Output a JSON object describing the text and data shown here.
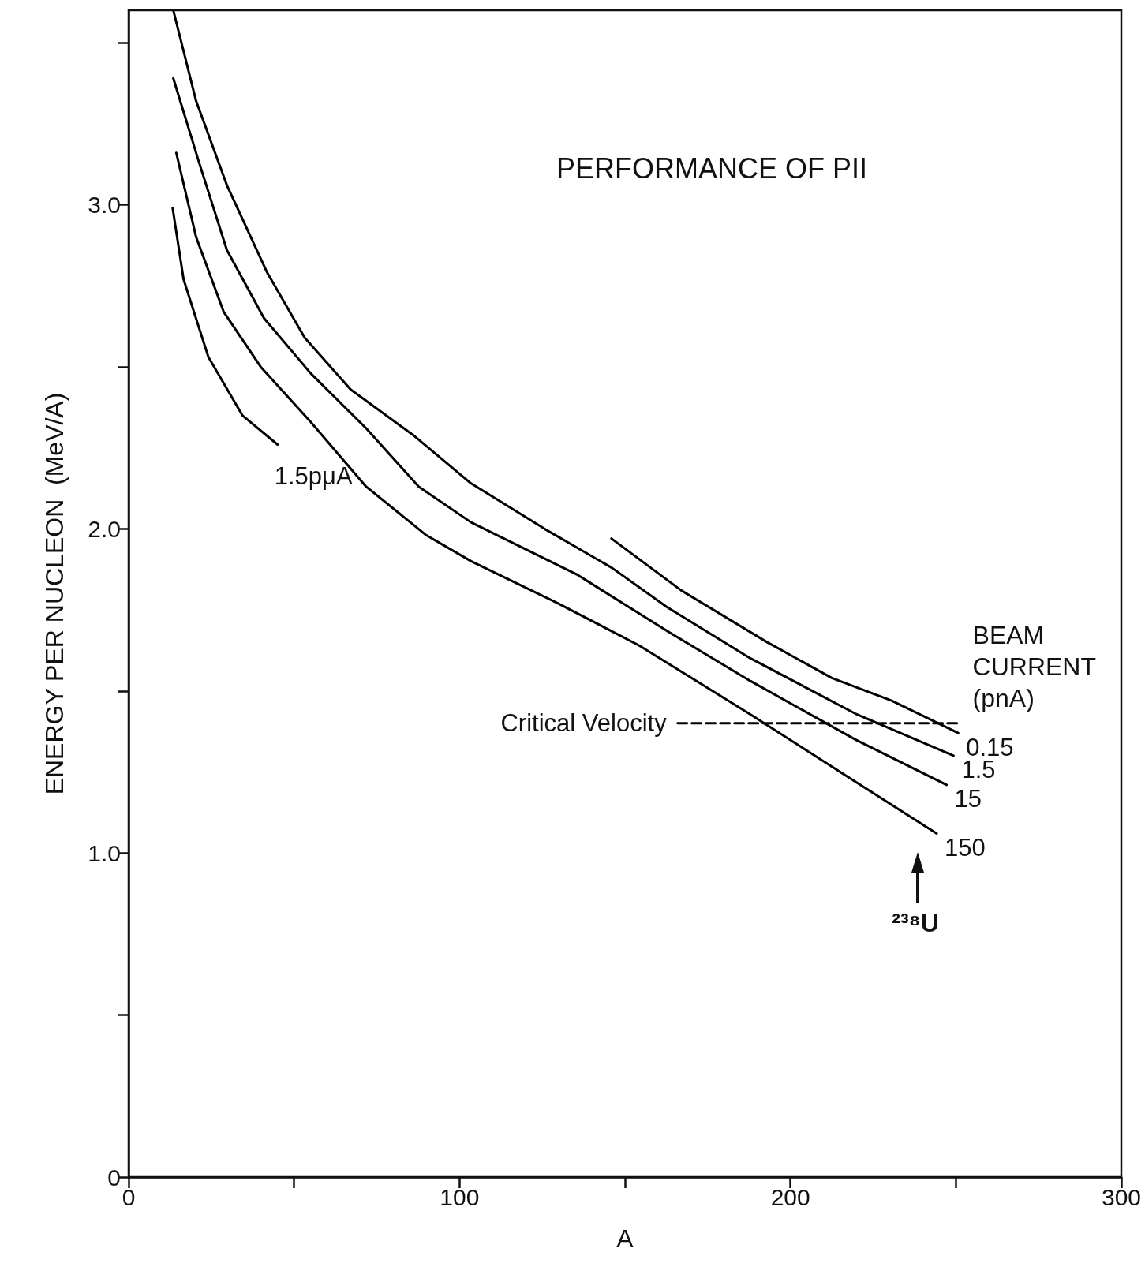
{
  "chart_data": {
    "type": "line",
    "title": "PERFORMANCE OF PII",
    "xlabel": "A",
    "ylabel": "ENERGY PER NUCLEON  (MeV/A)",
    "legend_title": "BEAM CURRENT (pnA)",
    "xlim": [
      0,
      300
    ],
    "xticks": [
      0,
      {
        "value": 50,
        "label": null
      },
      100,
      {
        "value": 150,
        "label": null
      },
      200,
      {
        "value": 250,
        "label": null
      },
      300
    ],
    "ylim": [
      0,
      3.6
    ],
    "yticks": [
      0,
      {
        "value": 0.5,
        "label": null
      },
      {
        "value": 1,
        "label": "1.0"
      },
      {
        "value": 1.5,
        "label": null
      },
      {
        "value": 2,
        "label": "2.0"
      },
      {
        "value": 2.5,
        "label": null
      },
      {
        "value": 3,
        "label": "3.0"
      },
      {
        "value": 3.5,
        "label": null
      }
    ],
    "grid": false,
    "legend": false,
    "marker": "none",
    "line_style": "solid",
    "series": [
      {
        "name": "0.15",
        "color": "#000000",
        "x": [
          145.9,
          167,
          193,
          212.5,
          230.6,
          250.7
        ],
        "values": [
          1.97,
          1.81,
          1.65,
          1.54,
          1.47,
          1.37
        ]
      },
      {
        "name": "1.5",
        "color": "#000000",
        "x": [
          13.5,
          20.4,
          29.7,
          41.9,
          53.2,
          67.1,
          85.9,
          103.5,
          125.7,
          146,
          162.5,
          188,
          219.6,
          249.3
        ],
        "values": [
          3.6,
          3.32,
          3.06,
          2.79,
          2.59,
          2.43,
          2.29,
          2.14,
          2.0,
          1.88,
          1.76,
          1.6,
          1.43,
          1.3
        ]
      },
      {
        "name": "15",
        "color": "#000000",
        "x": [
          13.5,
          21.3,
          29.7,
          40.9,
          55,
          71.8,
          87.7,
          103.5,
          135.3,
          163.5,
          188,
          219.6,
          247.2
        ],
        "values": [
          3.39,
          3.13,
          2.86,
          2.65,
          2.48,
          2.31,
          2.13,
          2.02,
          1.86,
          1.68,
          1.53,
          1.35,
          1.21
        ]
      },
      {
        "name": "150",
        "color": "#000000",
        "x": [
          14.4,
          20.4,
          28.7,
          39.9,
          55,
          71.8,
          90,
          103.5,
          129.8,
          154.3,
          187.5,
          219.6,
          244.2
        ],
        "values": [
          3.16,
          2.9,
          2.67,
          2.5,
          2.33,
          2.13,
          1.98,
          1.9,
          1.77,
          1.64,
          1.43,
          1.22,
          1.06
        ]
      },
      {
        "name": "1.5pμA",
        "color": "#000000",
        "x": [
          13.3,
          16.6,
          24.1,
          34.4,
          45
        ],
        "values": [
          2.99,
          2.77,
          2.53,
          2.35,
          2.26
        ]
      },
      {
        "name": "Critical Velocity",
        "color": "#000000",
        "line_style": "dashed",
        "x": [
          165.9,
          251.7
        ],
        "values": [
          1.4,
          1.4
        ]
      }
    ],
    "annotations": [
      "²³⁸U"
    ]
  }
}
